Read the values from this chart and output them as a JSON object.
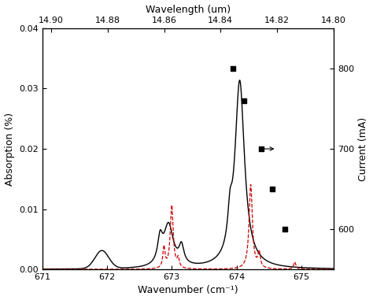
{
  "xlabel": "Wavenumber (cm⁻¹)",
  "ylabel": "Absorption (%)",
  "ylabel_right": "Current (mA)",
  "xlabel_top": "Wavelength (um)",
  "xlim": [
    671,
    675.5
  ],
  "ylim": [
    0.0,
    0.04
  ],
  "ylim_right": [
    550,
    850
  ],
  "xticks": [
    671,
    672,
    673,
    674,
    675
  ],
  "yticks_left": [
    0.0,
    0.01,
    0.02,
    0.03,
    0.04
  ],
  "yticks_right": [
    600,
    700,
    800
  ],
  "xticks_top_labels": [
    "14.90",
    "14.88",
    "14.86",
    "14.84",
    "14.82",
    "14.80"
  ],
  "xticks_top_vals": [
    14.9,
    14.88,
    14.86,
    14.84,
    14.82,
    14.8
  ],
  "black_line_color": "#000000",
  "red_line_color": "#cc0000",
  "scatter_color": "#000000",
  "background_color": "#ffffff",
  "scatter_points": [
    {
      "x": 673.95,
      "current": 800
    },
    {
      "x": 674.12,
      "current": 760
    },
    {
      "x": 674.38,
      "current": 700
    },
    {
      "x": 674.55,
      "current": 650
    },
    {
      "x": 674.75,
      "current": 600
    }
  ],
  "arrow_xt": 674.38,
  "arrow_xh": 674.62,
  "arrow_current": 700
}
